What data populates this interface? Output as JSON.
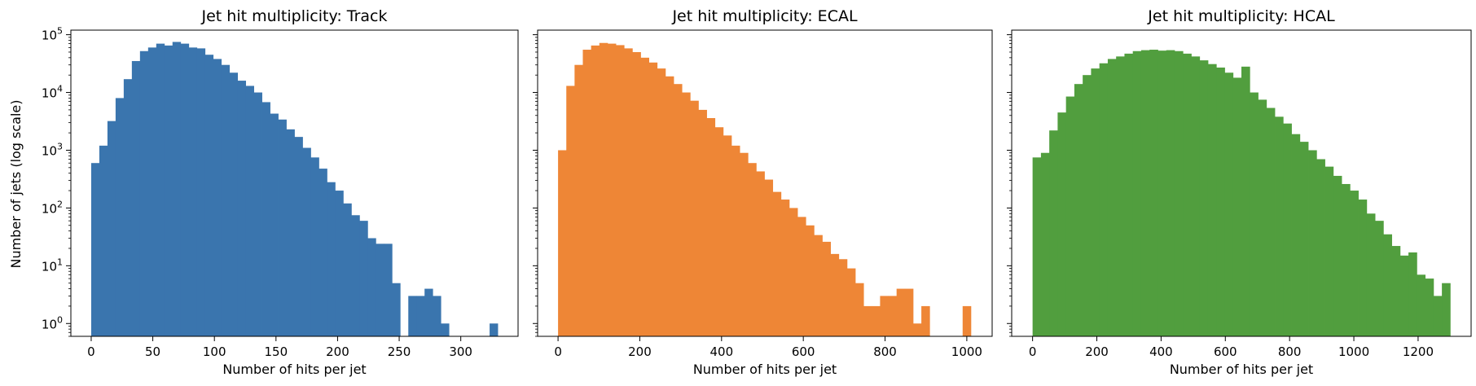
{
  "figure": {
    "ylabel": "Number of jets (log scale)"
  },
  "chart_data": [
    {
      "type": "bar",
      "title": "Jet hit multiplicity: Track",
      "xlabel": "Number of hits per jet",
      "ylabel": "Number of jets (log scale)",
      "yscale": "log",
      "ylim": [
        0.6,
        120000
      ],
      "xlim": [
        -16.5,
        346.5
      ],
      "xticks": [
        0,
        50,
        100,
        150,
        200,
        250,
        300
      ],
      "yticks": [
        1,
        10,
        100,
        1000,
        10000,
        100000
      ],
      "ytick_labels": [
        {
          "base": "10",
          "exp": "0"
        },
        {
          "base": "10",
          "exp": "1"
        },
        {
          "base": "10",
          "exp": "2"
        },
        {
          "base": "10",
          "exp": "3"
        },
        {
          "base": "10",
          "exp": "4"
        },
        {
          "base": "10",
          "exp": "5"
        }
      ],
      "color": "#3a75ae",
      "bin_start": 0,
      "bin_width": 6.6,
      "values": [
        600,
        1200,
        3200,
        8000,
        17000,
        35000,
        52000,
        60000,
        70000,
        65000,
        75000,
        70000,
        60000,
        58000,
        45000,
        38000,
        30000,
        22000,
        16000,
        13000,
        10000,
        6800,
        4300,
        3400,
        2300,
        1700,
        1100,
        750,
        480,
        280,
        200,
        120,
        75,
        60,
        30,
        24,
        24,
        5,
        0,
        3,
        3,
        4,
        3,
        1,
        0,
        0,
        0,
        0,
        0,
        1
      ]
    },
    {
      "type": "bar",
      "title": "Jet hit multiplicity: ECAL",
      "xlabel": "Number of hits per jet",
      "yscale": "log",
      "ylim": [
        0.6,
        120000
      ],
      "xlim": [
        -50,
        1062
      ],
      "xticks": [
        0,
        200,
        400,
        600,
        800,
        1000
      ],
      "color": "#ee8636",
      "bin_start": 0,
      "bin_width": 20.2,
      "values": [
        1000,
        13000,
        30000,
        55000,
        65000,
        72000,
        70000,
        66000,
        58000,
        50000,
        40000,
        33000,
        26000,
        19000,
        14000,
        10000,
        7200,
        5000,
        3600,
        2500,
        1800,
        1200,
        900,
        600,
        430,
        310,
        190,
        140,
        100,
        70,
        50,
        34,
        26,
        16,
        13,
        9,
        5,
        2,
        2,
        3,
        3,
        4,
        4,
        1,
        2,
        0,
        0,
        0,
        0,
        2
      ]
    },
    {
      "type": "bar",
      "title": "Jet hit multiplicity: HCAL",
      "xlabel": "Number of hits per jet",
      "yscale": "log",
      "ylim": [
        0.6,
        120000
      ],
      "xlim": [
        -65,
        1365
      ],
      "xticks": [
        0,
        200,
        400,
        600,
        800,
        1000,
        1200
      ],
      "color": "#519e3e",
      "bin_start": 0,
      "bin_width": 26,
      "values": [
        750,
        900,
        2200,
        4500,
        8500,
        14000,
        20000,
        26000,
        32000,
        38000,
        42000,
        47000,
        52000,
        54000,
        55000,
        53000,
        54000,
        52000,
        47000,
        42000,
        36000,
        31000,
        27000,
        22000,
        18000,
        28000,
        10000,
        7500,
        5400,
        3800,
        2900,
        1900,
        1400,
        1000,
        700,
        520,
        360,
        260,
        200,
        140,
        80,
        60,
        35,
        22,
        15,
        17,
        7,
        6,
        3,
        5
      ]
    }
  ]
}
